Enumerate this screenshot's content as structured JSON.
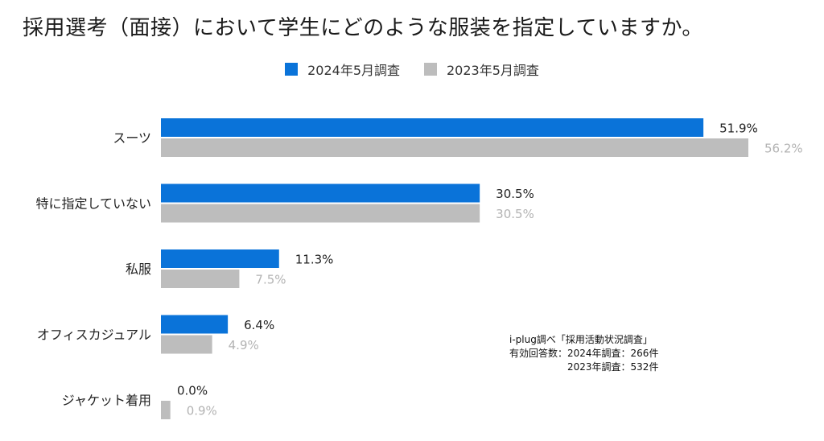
{
  "title": "採用選考（面接）において学生にどのような服装を指定していますか。",
  "colors": {
    "series_2024": "#0a73d9",
    "series_2023": "#bdbdbd",
    "label_2024": "#222222",
    "label_2023": "#b3b3b3"
  },
  "note": {
    "line1": "i-plug調べ「採用活動状況調査」",
    "line2": "有効回答数：2024年調査：266件",
    "line3": "　　　　　　2023年調査：532件"
  },
  "chart_data": {
    "type": "bar",
    "orientation": "horizontal",
    "categories": [
      "スーツ",
      "特に指定していない",
      "私服",
      "オフィスカジュアル",
      "ジャケット着用"
    ],
    "series": [
      {
        "name": "2024年5月調査",
        "values": [
          51.9,
          30.5,
          11.3,
          6.4,
          0.0
        ],
        "labels": [
          "51.9%",
          "30.5%",
          "11.3%",
          "6.4%",
          "0.0%"
        ]
      },
      {
        "name": "2023年5月調査",
        "values": [
          56.2,
          30.5,
          7.5,
          4.9,
          0.9
        ],
        "labels": [
          "56.2%",
          "30.5%",
          "7.5%",
          "4.9%",
          "0.9%"
        ]
      }
    ],
    "legend": "top-center",
    "grid": false,
    "xlim": [
      0,
      56.2
    ]
  }
}
